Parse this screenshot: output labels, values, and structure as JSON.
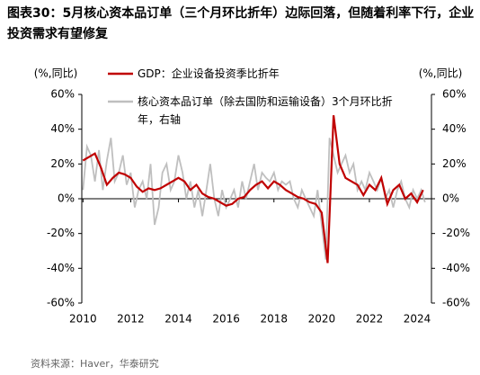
{
  "chart_data": {
    "type": "line",
    "title": "图表30：5月核心资本品订单（三个月环比折年）边际回落，但随着利率下行，企业投资需求有望修复",
    "source": "资料来源：Haver，华泰研究",
    "y_label": "(%,同比)",
    "y2_label": "(%,同比)",
    "xlim": [
      2009.95,
      2024.6
    ],
    "xticks": [
      2010,
      2012,
      2014,
      2016,
      2018,
      2020,
      2022,
      2024
    ],
    "ylim": [
      -60,
      60
    ],
    "yticks": [
      {
        "value": 60,
        "label": "60%"
      },
      {
        "value": 40,
        "label": "40%"
      },
      {
        "value": 20,
        "label": "20%"
      },
      {
        "value": 0,
        "label": "0%"
      },
      {
        "value": -20,
        "label": "-20%"
      },
      {
        "value": -40,
        "label": "-40%"
      },
      {
        "value": -60,
        "label": "-60%"
      }
    ],
    "y2lim": [
      -60,
      60
    ],
    "y2ticks": [
      {
        "value": 60,
        "label": "60%"
      },
      {
        "value": 40,
        "label": "40%"
      },
      {
        "value": 20,
        "label": "20%"
      },
      {
        "value": 0,
        "label": "0%"
      },
      {
        "value": -20,
        "label": "-20%"
      },
      {
        "value": -40,
        "label": "-40%"
      },
      {
        "value": -60,
        "label": "-60%"
      }
    ],
    "series": [
      {
        "name": "核心资本品订单（除去国防和运输设备）3个月环比折年，右轴",
        "color": "#bfbfbf",
        "axis": "y2",
        "x": [
          2010,
          2010.17,
          2010.33,
          2010.5,
          2010.67,
          2010.83,
          2011,
          2011.17,
          2011.33,
          2011.5,
          2011.67,
          2011.83,
          2012,
          2012.17,
          2012.33,
          2012.5,
          2012.67,
          2012.83,
          2013,
          2013.17,
          2013.33,
          2013.5,
          2013.67,
          2013.83,
          2014,
          2014.17,
          2014.33,
          2014.5,
          2014.67,
          2014.83,
          2015,
          2015.17,
          2015.33,
          2015.5,
          2015.67,
          2015.83,
          2016,
          2016.17,
          2016.33,
          2016.5,
          2016.67,
          2016.83,
          2017,
          2017.17,
          2017.33,
          2017.5,
          2017.67,
          2017.83,
          2018,
          2018.17,
          2018.33,
          2018.5,
          2018.67,
          2018.83,
          2019,
          2019.17,
          2019.33,
          2019.5,
          2019.67,
          2019.83,
          2020,
          2020.17,
          2020.33,
          2020.5,
          2020.67,
          2020.83,
          2021,
          2021.17,
          2021.33,
          2021.5,
          2021.67,
          2021.83,
          2022,
          2022.17,
          2022.33,
          2022.5,
          2022.67,
          2022.83,
          2023,
          2023.17,
          2023.33,
          2023.5,
          2023.67,
          2023.83,
          2024,
          2024.17,
          2024.33
        ],
        "values": [
          5,
          30,
          25,
          10,
          28,
          5,
          22,
          35,
          10,
          15,
          25,
          8,
          15,
          -5,
          5,
          10,
          0,
          20,
          -15,
          -5,
          15,
          20,
          5,
          10,
          25,
          15,
          0,
          10,
          -5,
          5,
          -10,
          5,
          20,
          0,
          -10,
          5,
          -5,
          0,
          5,
          -5,
          10,
          0,
          10,
          20,
          5,
          15,
          12,
          10,
          15,
          5,
          10,
          8,
          10,
          0,
          -5,
          5,
          0,
          -5,
          -10,
          5,
          -15,
          -35,
          35,
          25,
          15,
          20,
          25,
          15,
          20,
          5,
          10,
          5,
          15,
          10,
          5,
          12,
          0,
          5,
          -5,
          5,
          10,
          0,
          -5,
          5,
          0,
          5,
          -2
        ]
      },
      {
        "name": "GDP：企业设备投资季比折年",
        "color": "#c00000",
        "x": [
          2010,
          2010.25,
          2010.5,
          2010.75,
          2011,
          2011.25,
          2011.5,
          2011.75,
          2012,
          2012.25,
          2012.5,
          2012.75,
          2013,
          2013.25,
          2013.5,
          2013.75,
          2014,
          2014.25,
          2014.5,
          2014.75,
          2015,
          2015.25,
          2015.5,
          2015.75,
          2016,
          2016.25,
          2016.5,
          2016.75,
          2017,
          2017.25,
          2017.5,
          2017.75,
          2018,
          2018.25,
          2018.5,
          2018.75,
          2019,
          2019.25,
          2019.5,
          2019.75,
          2020,
          2020.25,
          2020.5,
          2020.75,
          2021,
          2021.25,
          2021.5,
          2021.75,
          2022,
          2022.25,
          2022.5,
          2022.75,
          2023,
          2023.25,
          2023.5,
          2023.75,
          2024,
          2024.25
        ],
        "values": [
          22,
          24,
          26,
          18,
          8,
          12,
          15,
          14,
          12,
          7,
          4,
          6,
          5,
          6,
          8,
          10,
          12,
          10,
          5,
          8,
          3,
          1,
          0,
          -2,
          -4,
          -3,
          0,
          1,
          5,
          8,
          10,
          6,
          10,
          8,
          5,
          3,
          1,
          0,
          -2,
          -3,
          -8,
          -37,
          48,
          20,
          12,
          10,
          8,
          2,
          8,
          5,
          12,
          -3,
          5,
          8,
          0,
          3,
          -2,
          5
        ]
      }
    ]
  }
}
